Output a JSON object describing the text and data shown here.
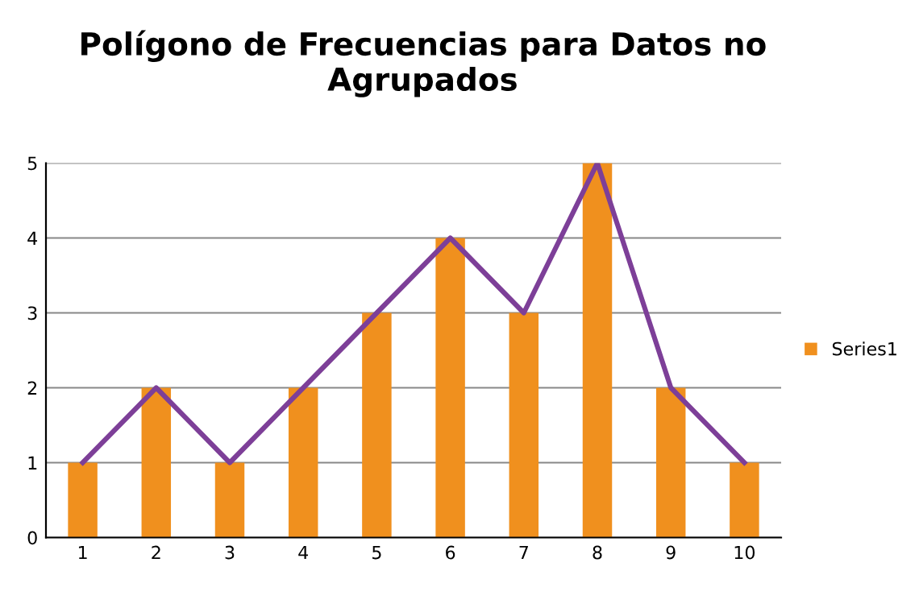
{
  "chart_data": {
    "type": "bar",
    "title": "Polígono de Frecuencias para Datos no Agrupados",
    "categories": [
      "1",
      "2",
      "3",
      "4",
      "5",
      "6",
      "7",
      "8",
      "9",
      "10"
    ],
    "series": [
      {
        "name": "Series1",
        "color": "#f0901e",
        "values": [
          1,
          2,
          1,
          2,
          3,
          4,
          3,
          5,
          2,
          1
        ]
      },
      {
        "type": "line",
        "color": "#7d3f98",
        "values": [
          1,
          2,
          1,
          2,
          3,
          4,
          3,
          5,
          2,
          1
        ]
      }
    ],
    "ylim": [
      0,
      5
    ],
    "yticks": [
      0,
      1,
      2,
      3,
      4,
      5
    ],
    "grid": "y",
    "legend": "right",
    "marker": "none",
    "line_style": "solid"
  }
}
